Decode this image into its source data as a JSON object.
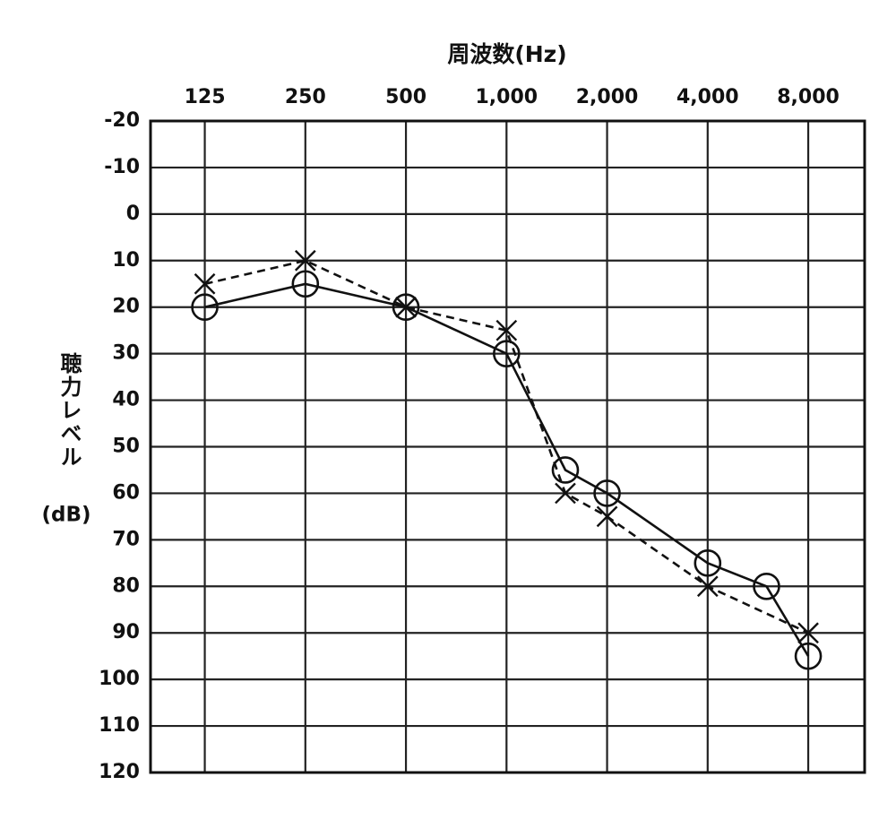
{
  "chart_data": {
    "type": "line",
    "title": "周波数(Hz)",
    "y_label": "聴力レベル",
    "y_label_unit": "(dB)",
    "x_scale": "log",
    "xlim": [
      86,
      11800
    ],
    "xticks": [
      125,
      250,
      500,
      {
        "value": 1000,
        "label": "1,000"
      },
      {
        "value": 2000,
        "label": "2,000"
      },
      {
        "value": 4000,
        "label": "4,000"
      },
      {
        "value": 8000,
        "label": "8,000"
      }
    ],
    "ylim": [
      -20,
      120
    ],
    "y_inverted": true,
    "yticks": [
      -20,
      -10,
      0,
      10,
      20,
      30,
      40,
      50,
      60,
      70,
      80,
      90,
      100,
      110,
      120
    ],
    "grid": true,
    "series": [
      {
        "color": "#111111",
        "marker": "circle",
        "dashed": false,
        "x": [
          125,
          250,
          500,
          1000,
          1500,
          2000,
          4000,
          6000,
          8000
        ],
        "values": [
          20,
          15,
          20,
          30,
          55,
          60,
          75,
          80,
          95
        ]
      },
      {
        "color": "#111111",
        "marker": "x",
        "dashed": true,
        "x": [
          125,
          250,
          500,
          1000,
          1500,
          2000,
          4000,
          8000
        ],
        "values": [
          15,
          10,
          20,
          25,
          60,
          65,
          80,
          90
        ]
      }
    ]
  }
}
